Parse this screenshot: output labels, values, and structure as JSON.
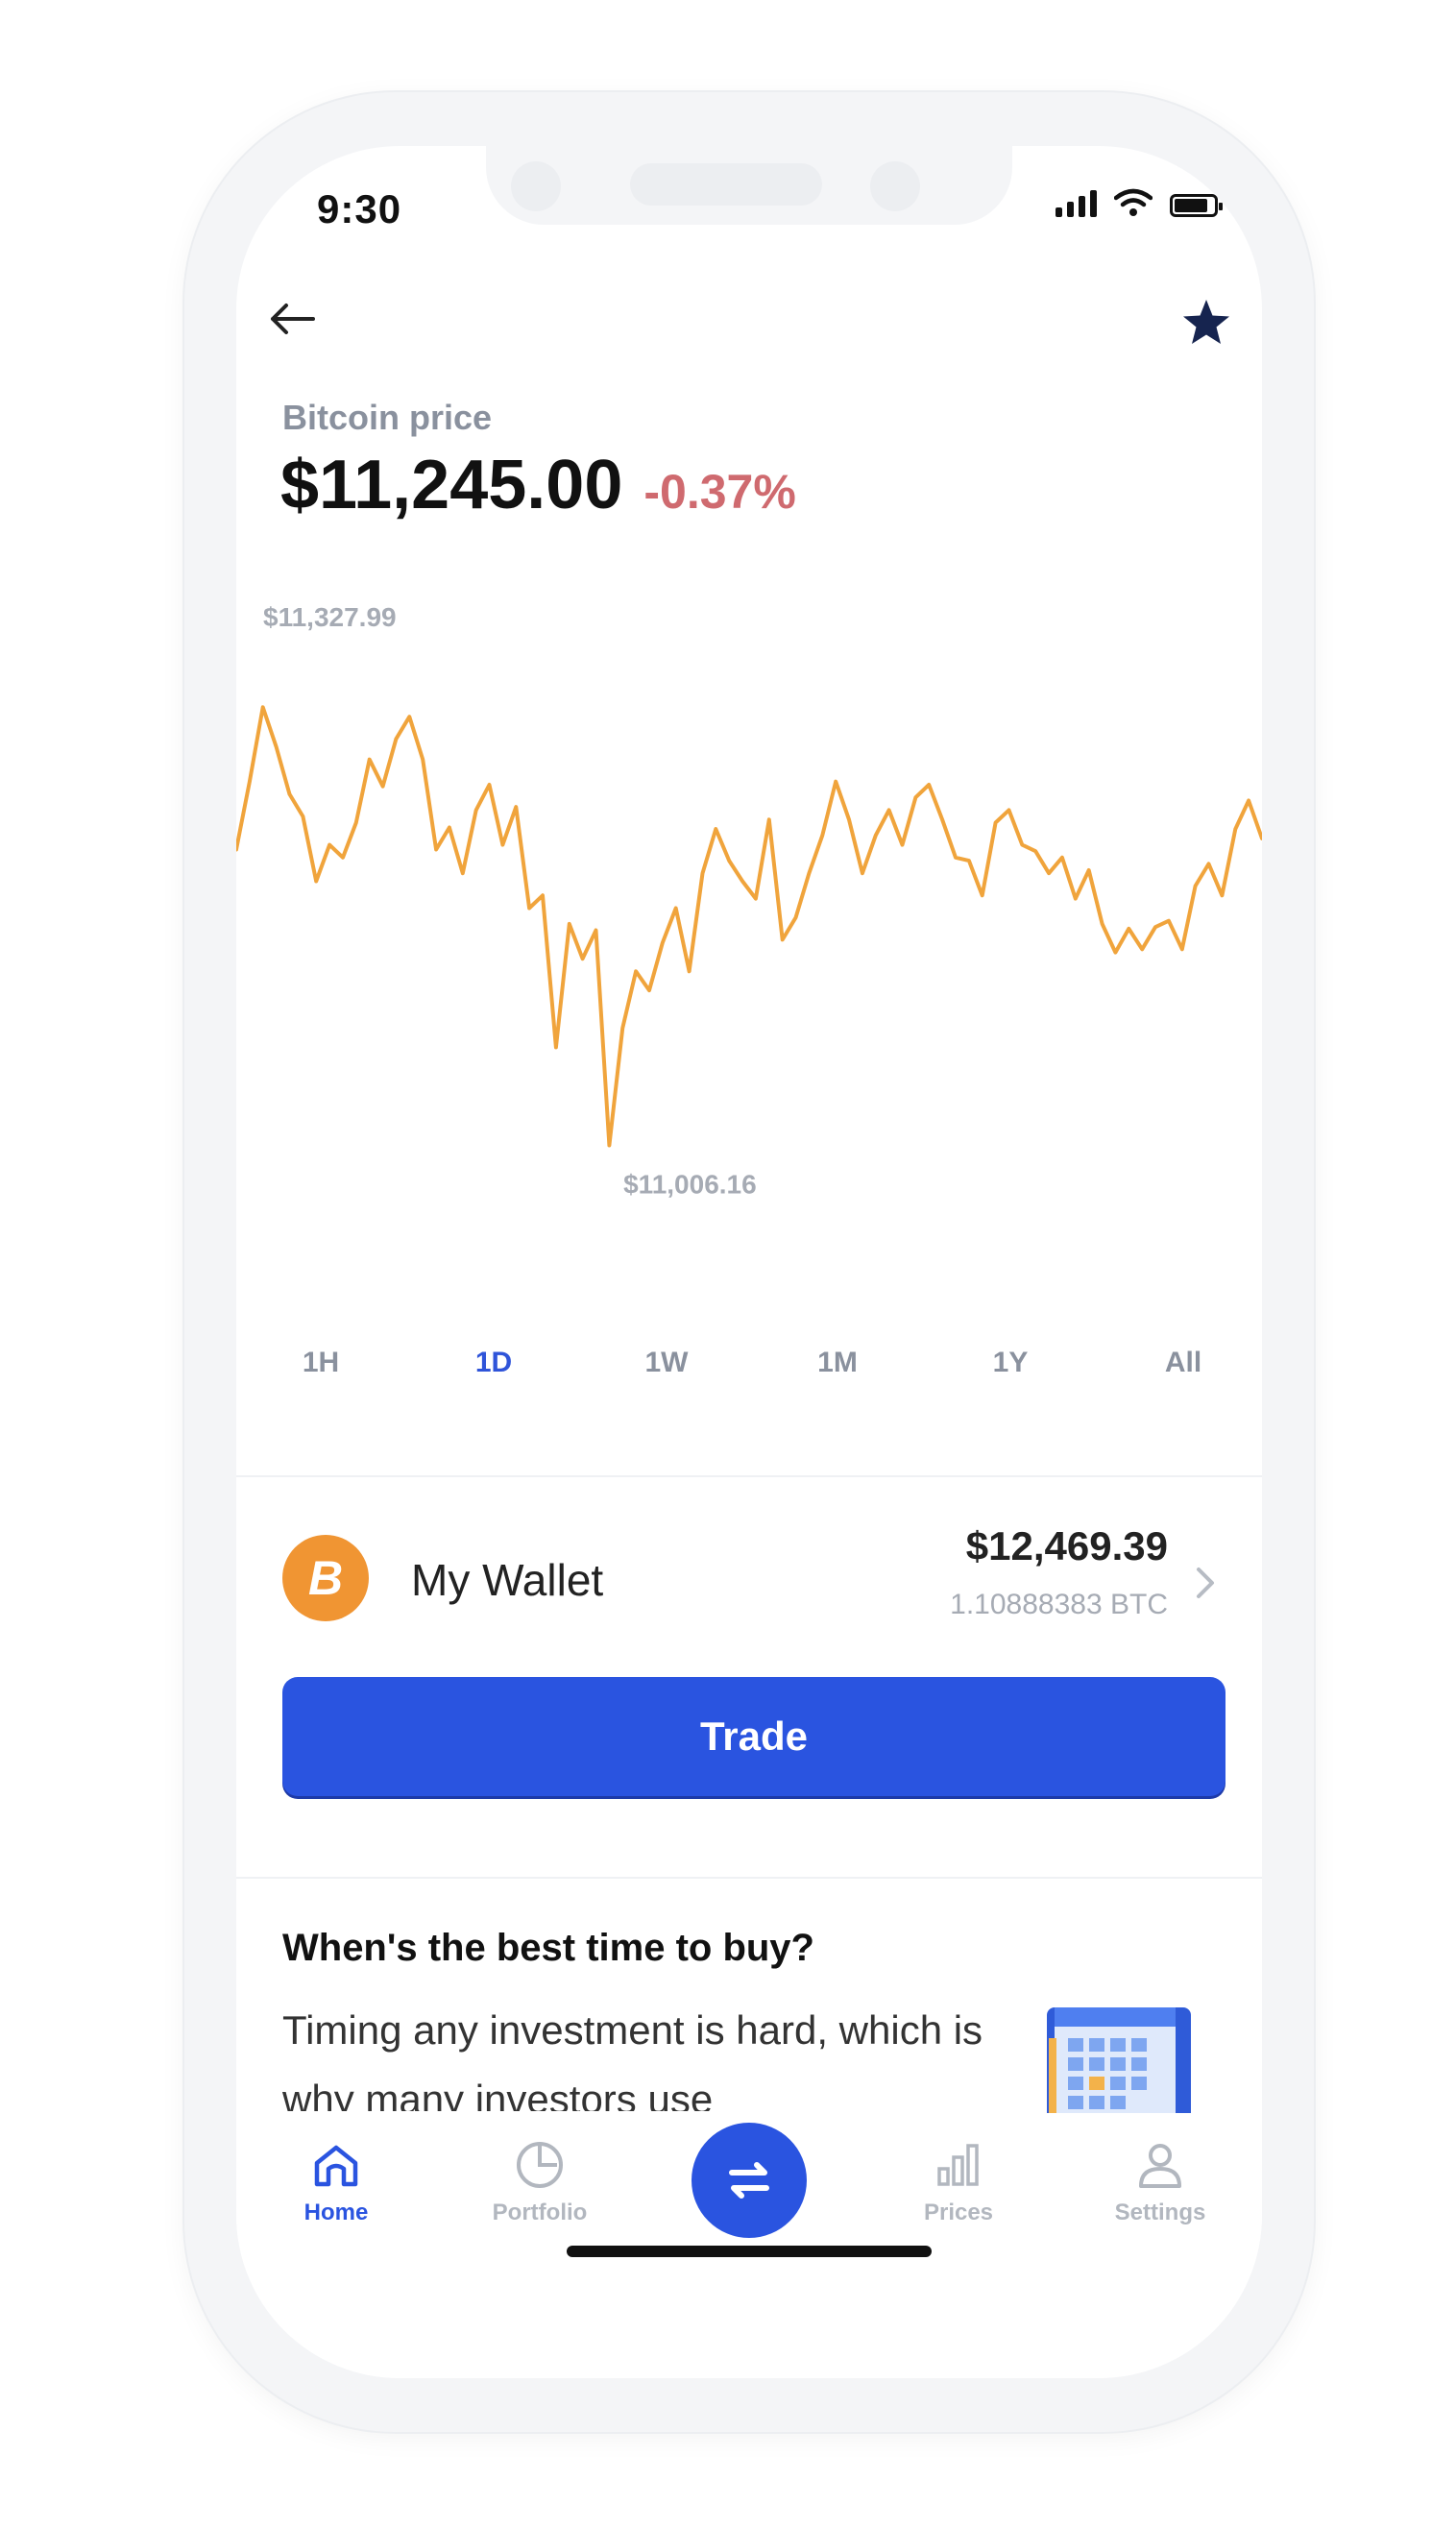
{
  "status_bar": {
    "time": "9:30"
  },
  "header": {
    "back_icon": "arrow-left-icon",
    "favorite_icon": "star-icon"
  },
  "price": {
    "label": "Bitcoin price",
    "value": "$11,245.00",
    "change": "-0.37%",
    "change_color": "#cf6a6f"
  },
  "chart_data": {
    "type": "line",
    "title": "",
    "xlabel": "",
    "ylabel": "",
    "annotations": {
      "high": "$11,327.99",
      "low": "$11,006.16"
    },
    "ylim": [
      11006.16,
      11327.99
    ],
    "line_color": "#f0a43c",
    "grid": false,
    "values": [
      11205,
      11248,
      11295,
      11270,
      11240,
      11226,
      11185,
      11208,
      11200,
      11222,
      11262,
      11245,
      11275,
      11289,
      11262,
      11205,
      11219,
      11190,
      11230,
      11246,
      11208,
      11232,
      11168,
      11176,
      11080,
      11158,
      11136,
      11154,
      11018,
      11092,
      11128,
      11116,
      11146,
      11168,
      11128,
      11190,
      11218,
      11198,
      11185,
      11174,
      11224,
      11148,
      11162,
      11190,
      11214,
      11248,
      11224,
      11190,
      11214,
      11230,
      11208,
      11238,
      11246,
      11224,
      11200,
      11198,
      11176,
      11222,
      11230,
      11208,
      11204,
      11190,
      11200,
      11174,
      11192,
      11158,
      11140,
      11155,
      11142,
      11156,
      11160,
      11142,
      11182,
      11196,
      11176,
      11218,
      11236,
      11212
    ]
  },
  "ranges": {
    "active": "1D",
    "items": [
      "1H",
      "1D",
      "1W",
      "1M",
      "1Y",
      "All"
    ]
  },
  "wallet": {
    "label": "My Wallet",
    "balance": "$12,469.39",
    "btc_amount": "1.10888383 BTC",
    "coin_glyph": "B",
    "coin_color": "#f09533"
  },
  "trade": {
    "label": "Trade",
    "color": "#2a54e0"
  },
  "article": {
    "title": "When's the best time to buy?",
    "body": "Timing any investment is hard, which is why many investors use",
    "image_icon": "calendar-icon"
  },
  "nav": {
    "items": [
      {
        "label": "Home",
        "icon": "home-icon",
        "active": true
      },
      {
        "label": "Portfolio",
        "icon": "portfolio-icon",
        "active": false
      },
      {
        "label": "Prices",
        "icon": "prices-icon",
        "active": false
      },
      {
        "label": "Settings",
        "icon": "settings-icon",
        "active": false
      }
    ],
    "center_icon": "swap-arrows-icon"
  }
}
